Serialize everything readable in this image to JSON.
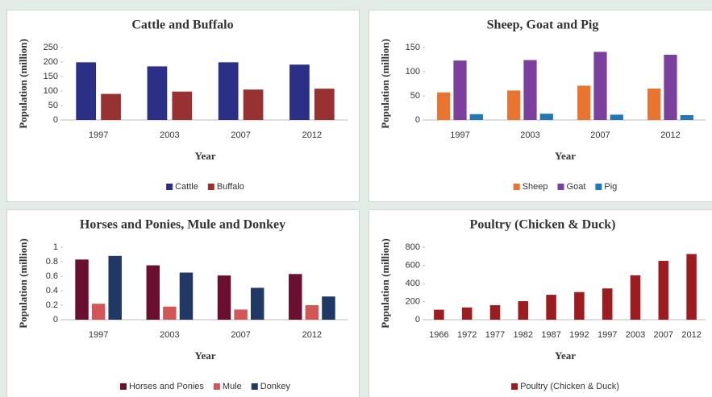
{
  "chart_data": [
    {
      "type": "bar",
      "title": "Cattle and Buffalo",
      "x_label": "Year",
      "y_label": "Population (million)",
      "categories": [
        "1997",
        "2003",
        "2007",
        "2012"
      ],
      "series": [
        {
          "name": "Cattle",
          "color": "#2c2f86",
          "values": [
            199,
            185,
            199,
            191
          ]
        },
        {
          "name": "Buffalo",
          "color": "#983232",
          "values": [
            90,
            98,
            105,
            108
          ]
        }
      ],
      "ylim": [
        0,
        250
      ],
      "yticks": [
        0,
        50,
        100,
        150,
        200,
        250
      ],
      "legend": "bottom"
    },
    {
      "type": "bar",
      "title": "Sheep, Goat and Pig",
      "x_label": "Year",
      "y_label": "Population (million)",
      "categories": [
        "1997",
        "2003",
        "2007",
        "2012"
      ],
      "series": [
        {
          "name": "Sheep",
          "color": "#e8742f",
          "values": [
            57,
            61,
            71,
            65
          ]
        },
        {
          "name": "Goat",
          "color": "#7b3f9e",
          "values": [
            123,
            124,
            141,
            135
          ]
        },
        {
          "name": "Pig",
          "color": "#1f78b8",
          "values": [
            12,
            13,
            11,
            10
          ]
        }
      ],
      "ylim": [
        0,
        150
      ],
      "yticks": [
        0,
        50,
        100,
        150
      ],
      "legend": "bottom"
    },
    {
      "type": "bar",
      "title": "Horses and Ponies, Mule and Donkey",
      "x_label": "Year",
      "y_label": "Population (million)",
      "categories": [
        "1997",
        "2003",
        "2007",
        "2012"
      ],
      "series": [
        {
          "name": "Horses and Ponies",
          "color": "#6a0f30",
          "values": [
            0.83,
            0.75,
            0.61,
            0.63
          ]
        },
        {
          "name": "Mule",
          "color": "#d35656",
          "values": [
            0.22,
            0.18,
            0.14,
            0.2
          ]
        },
        {
          "name": "Donkey",
          "color": "#1f3864",
          "values": [
            0.88,
            0.65,
            0.44,
            0.32
          ]
        }
      ],
      "ylim": [
        0,
        1
      ],
      "yticks": [
        0,
        0.2,
        0.4,
        0.6,
        0.8,
        1
      ],
      "legend": "bottom"
    },
    {
      "type": "bar",
      "title": "Poultry (Chicken & Duck)",
      "x_label": "Year",
      "y_label": "Population (million)",
      "categories": [
        "1966",
        "1972",
        "1977",
        "1982",
        "1987",
        "1992",
        "1997",
        "2003",
        "2007",
        "2012"
      ],
      "series": [
        {
          "name": "Poultry (Chicken & Duck)",
          "color": "#9c1c1f",
          "values": [
            110,
            135,
            160,
            205,
            275,
            305,
            345,
            490,
            650,
            725
          ]
        }
      ],
      "ylim": [
        0,
        800
      ],
      "yticks": [
        0,
        200,
        400,
        600,
        800
      ],
      "legend": "bottom"
    }
  ]
}
